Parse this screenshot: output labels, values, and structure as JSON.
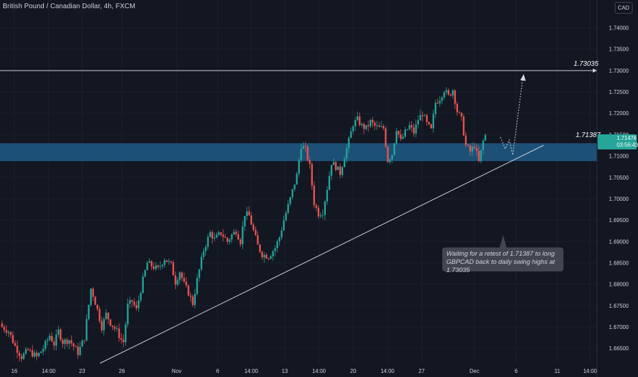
{
  "header": {
    "title": "British Pound / Canadian Dollar, 4h, FXCM",
    "currency_button": "CAD"
  },
  "colors": {
    "background": "#131722",
    "up": "#26a69a",
    "down": "#ef5350",
    "zone": "#1e5b86",
    "line": "#d1d4dc"
  },
  "annotations": {
    "resistance_label": "1.73035",
    "zone_label": "1.71387",
    "callout_text": "Waiting for a retest of 1.71387 to long GBPCAD back to daily swing highs at 1.73035"
  },
  "last_price": {
    "value": "1.71476",
    "countdown": "03:56:43"
  },
  "chart_data": {
    "type": "candlestick",
    "title": "British Pound / Canadian Dollar, 4h, FXCM",
    "ylim": [
      1.6615,
      1.7465
    ],
    "y_ticks": [
      "1.74000",
      "1.73500",
      "1.73000",
      "1.72500",
      "1.72000",
      "1.71500",
      "1.71000",
      "1.70500",
      "1.70000",
      "1.69500",
      "1.69000",
      "1.68500",
      "1.68000",
      "1.67500",
      "1.67000",
      "1.66500"
    ],
    "x_ticks": [
      "16",
      "14:00",
      "23",
      "26",
      "Nov",
      "6",
      "14:00",
      "13",
      "14:00",
      "20",
      "14:00",
      "27",
      "Dec",
      "6",
      "11",
      "14:00"
    ],
    "close_path": [
      [
        0,
        1.67
      ],
      [
        3,
        1.669
      ],
      [
        6,
        1.6655
      ],
      [
        9,
        1.663
      ],
      [
        12,
        1.6645
      ],
      [
        16,
        1.663
      ],
      [
        19,
        1.665
      ],
      [
        22,
        1.668
      ],
      [
        24,
        1.666
      ],
      [
        26,
        1.669
      ],
      [
        28,
        1.6665
      ],
      [
        31,
        1.667
      ],
      [
        35,
        1.664
      ],
      [
        38,
        1.6675
      ],
      [
        41,
        1.679
      ],
      [
        42,
        1.6775
      ],
      [
        44,
        1.674
      ],
      [
        46,
        1.67
      ],
      [
        48,
        1.673
      ],
      [
        50,
        1.671
      ],
      [
        53,
        1.669
      ],
      [
        55,
        1.667
      ],
      [
        56,
        1.6665
      ],
      [
        58,
        1.675
      ],
      [
        60,
        1.676
      ],
      [
        62,
        1.674
      ],
      [
        65,
        1.681
      ],
      [
        67,
        1.685
      ],
      [
        70,
        1.684
      ],
      [
        72,
        1.6835
      ],
      [
        75,
        1.686
      ],
      [
        78,
        1.6845
      ],
      [
        80,
        1.6805
      ],
      [
        82,
        1.683
      ],
      [
        84,
        1.68
      ],
      [
        86,
        1.678
      ],
      [
        88,
        1.6755
      ],
      [
        90,
        1.681
      ],
      [
        93,
        1.688
      ],
      [
        96,
        1.692
      ],
      [
        98,
        1.6905
      ],
      [
        101,
        1.692
      ],
      [
        104,
        1.69
      ],
      [
        106,
        1.6915
      ],
      [
        108,
        1.6925
      ],
      [
        110,
        1.69
      ],
      [
        112,
        1.6965
      ],
      [
        114,
        1.696
      ],
      [
        116,
        1.6925
      ],
      [
        118,
        1.689
      ],
      [
        120,
        1.687
      ],
      [
        123,
        1.6865
      ],
      [
        126,
        1.6885
      ],
      [
        128,
        1.691
      ],
      [
        130,
        1.695
      ],
      [
        133,
        1.7
      ],
      [
        136,
        1.7055
      ],
      [
        138,
        1.7125
      ],
      [
        140,
        1.7115
      ],
      [
        142,
        1.7075
      ],
      [
        144,
        1.699
      ],
      [
        146,
        1.6965
      ],
      [
        148,
        1.697
      ],
      [
        150,
        1.7025
      ],
      [
        152,
        1.7085
      ],
      [
        154,
        1.7075
      ],
      [
        156,
        1.706
      ],
      [
        158,
        1.71
      ],
      [
        160,
        1.7135
      ],
      [
        162,
        1.7175
      ],
      [
        164,
        1.7185
      ],
      [
        166,
        1.717
      ],
      [
        168,
        1.7165
      ],
      [
        170,
        1.718
      ],
      [
        172,
        1.717
      ],
      [
        174,
        1.7165
      ],
      [
        176,
        1.7165
      ],
      [
        178,
        1.709
      ],
      [
        180,
        1.7105
      ],
      [
        182,
        1.7165
      ],
      [
        184,
        1.7135
      ],
      [
        186,
        1.7155
      ],
      [
        188,
        1.717
      ],
      [
        190,
        1.7155
      ],
      [
        192,
        1.7185
      ],
      [
        194,
        1.72
      ],
      [
        196,
        1.7175
      ],
      [
        198,
        1.716
      ],
      [
        200,
        1.7225
      ],
      [
        202,
        1.7235
      ],
      [
        204,
        1.7255
      ],
      [
        206,
        1.724
      ],
      [
        208,
        1.7255
      ],
      [
        210,
        1.7205
      ],
      [
        212,
        1.7185
      ],
      [
        214,
        1.7125
      ],
      [
        216,
        1.711
      ],
      [
        218,
        1.7125
      ],
      [
        220,
        1.7085
      ],
      [
        222,
        1.7135
      ],
      [
        223,
        1.7148
      ]
    ],
    "lines": [
      {
        "name": "1.73035",
        "kind": "horizontal",
        "y": 1.73035
      },
      {
        "name": "trendline",
        "kind": "segment",
        "from": [
          1.6615
        ],
        "to": [
          1.71387
        ]
      }
    ],
    "zone": {
      "label": "1.71387",
      "ymin": 1.7097,
      "ymax": 1.7134
    }
  }
}
